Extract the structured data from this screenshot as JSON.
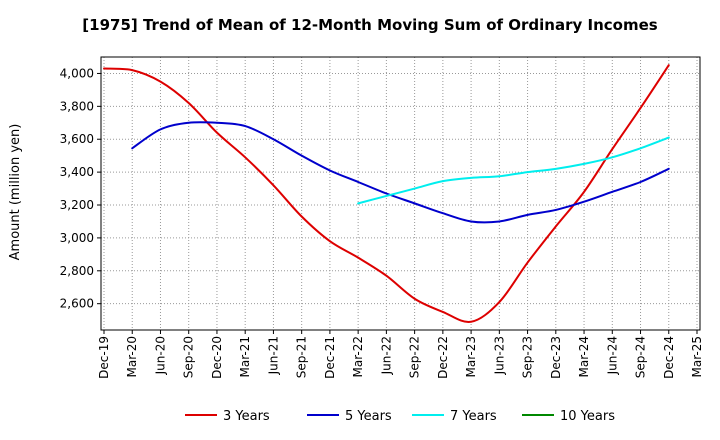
{
  "chart_data": {
    "type": "line",
    "title": "[1975]  Trend of Mean of 12-Month Moving Sum of Ordinary Incomes",
    "xlabel": "",
    "ylabel": "Amount (million yen)",
    "ylim": [
      2440,
      4100
    ],
    "yticks": [
      2600,
      2800,
      3000,
      3200,
      3400,
      3600,
      3800,
      4000
    ],
    "ytick_labels": [
      "2,600",
      "2,800",
      "3,000",
      "3,200",
      "3,400",
      "3,600",
      "3,800",
      "4,000"
    ],
    "categories": [
      "Dec-19",
      "Mar-20",
      "Jun-20",
      "Sep-20",
      "Dec-20",
      "Mar-21",
      "Jun-21",
      "Sep-21",
      "Dec-21",
      "Mar-22",
      "Jun-22",
      "Sep-22",
      "Dec-22",
      "Mar-23",
      "Jun-23",
      "Sep-23",
      "Dec-23",
      "Mar-24",
      "Jun-24",
      "Sep-24",
      "Dec-24",
      "Mar-25"
    ],
    "grid": true,
    "legend_position": "bottom",
    "series": [
      {
        "name": "3 Years",
        "color": "#dd0000",
        "values": [
          4030,
          4020,
          3950,
          3820,
          3640,
          3490,
          3320,
          3130,
          2980,
          2880,
          2770,
          2630,
          2550,
          2490,
          2610,
          2850,
          3070,
          3280,
          3540,
          3790,
          4050,
          null
        ]
      },
      {
        "name": "5 Years",
        "color": "#0000cc",
        "values": [
          null,
          3545,
          3660,
          3700,
          3700,
          3680,
          3600,
          3500,
          3410,
          3340,
          3270,
          3210,
          3150,
          3100,
          3100,
          3140,
          3170,
          3220,
          3280,
          3340,
          3420,
          null
        ]
      },
      {
        "name": "7 Years",
        "color": "#00eeee",
        "values": [
          null,
          null,
          null,
          null,
          null,
          null,
          null,
          null,
          null,
          3210,
          3255,
          3300,
          3345,
          3365,
          3375,
          3400,
          3420,
          3450,
          3490,
          3545,
          3610,
          null
        ]
      },
      {
        "name": "10 Years",
        "color": "#008800",
        "values": [
          null,
          null,
          null,
          null,
          null,
          null,
          null,
          null,
          null,
          null,
          null,
          null,
          null,
          null,
          null,
          null,
          null,
          null,
          null,
          null,
          null,
          null
        ]
      }
    ]
  }
}
